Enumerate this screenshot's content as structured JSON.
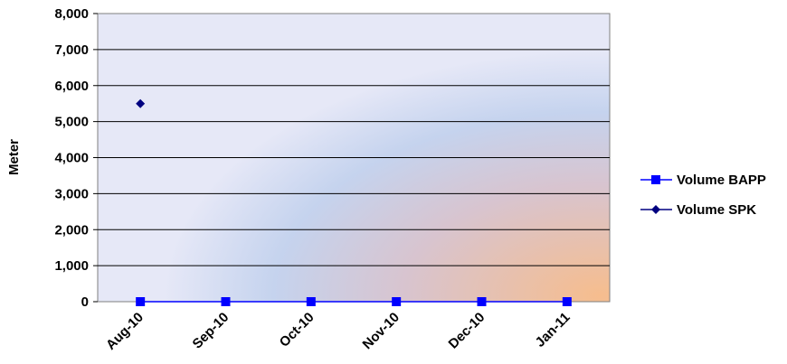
{
  "chart_data": {
    "type": "line",
    "title": "",
    "xlabel": "",
    "ylabel": "Meter",
    "categories": [
      "Aug-10",
      "Sep-10",
      "Oct-10",
      "Nov-10",
      "Dec-10",
      "Jan-11"
    ],
    "yticks": [
      "0",
      "1,000",
      "2,000",
      "3,000",
      "4,000",
      "5,000",
      "6,000",
      "7,000",
      "8,000"
    ],
    "ylim": [
      0,
      8000
    ],
    "grid": true,
    "legend_position": "right",
    "series": [
      {
        "name": "Volume BAPP",
        "values": [
          0,
          0,
          0,
          0,
          0,
          0
        ],
        "color": "#0000ff",
        "marker": "square",
        "line": true
      },
      {
        "name": "Volume SPK",
        "values": [
          5500,
          null,
          null,
          null,
          null,
          null
        ],
        "color": "#000080",
        "marker": "diamond",
        "line": true
      }
    ]
  }
}
